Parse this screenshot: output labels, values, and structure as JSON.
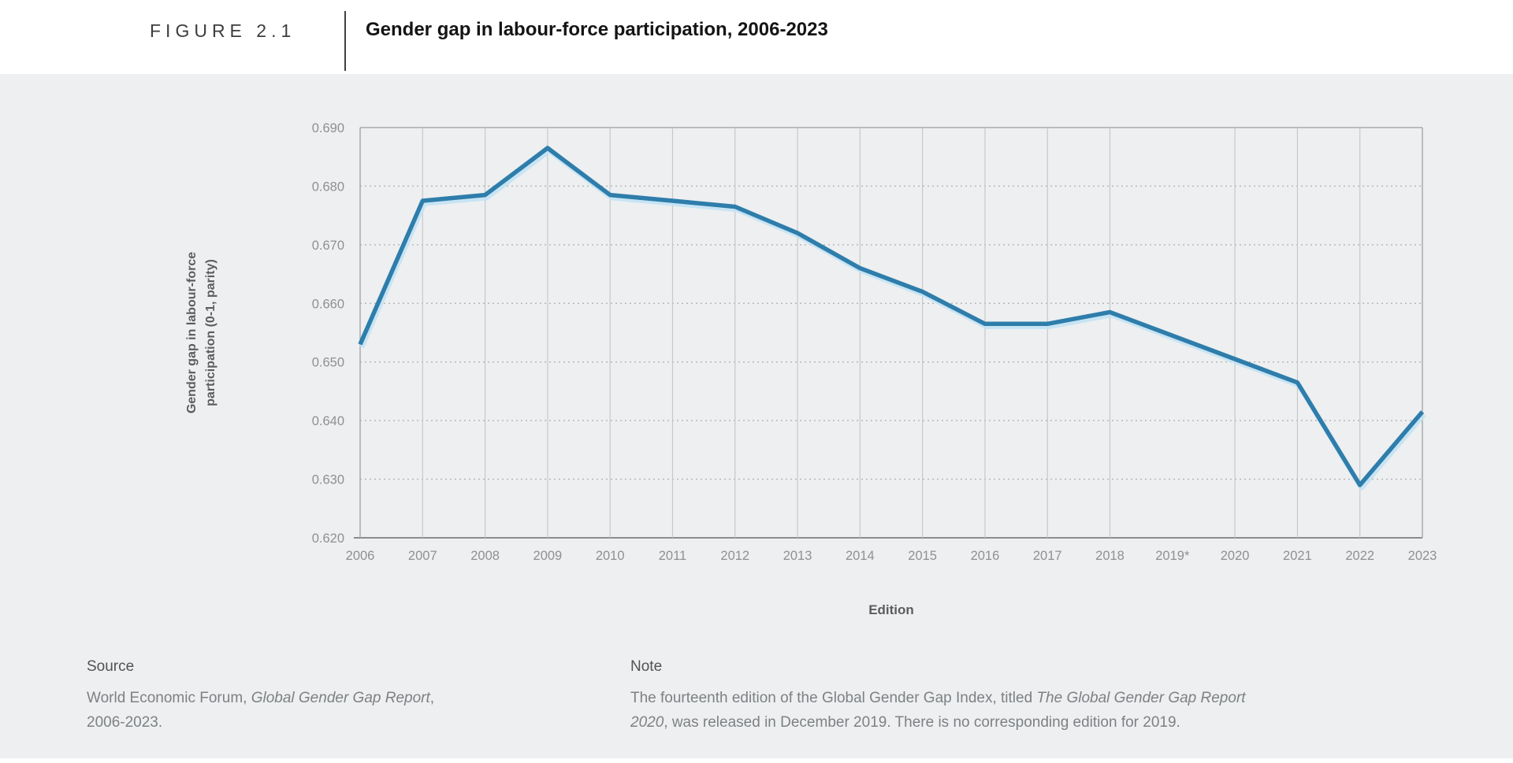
{
  "figure": {
    "label": "FIGURE 2.1",
    "title": "Gender gap in labour-force participation, 2006-2023"
  },
  "chart_data": {
    "type": "line",
    "title": "Gender gap in labour-force participation, 2006-2023",
    "xlabel": "Edition",
    "ylabel": "Gender gap in labour-force participation (0-1, parity)",
    "ylabel_lines": [
      "Gender gap in labour-force",
      "participation (0-1, parity)"
    ],
    "categories": [
      "2006",
      "2007",
      "2008",
      "2009",
      "2010",
      "2011",
      "2012",
      "2013",
      "2014",
      "2015",
      "2016",
      "2017",
      "2018",
      "2019*",
      "2020",
      "2021",
      "2022",
      "2023"
    ],
    "series": [
      {
        "name": "Gender gap in labour-force participation",
        "values": [
          0.653,
          0.6775,
          0.6785,
          0.6865,
          0.6785,
          0.6775,
          0.6765,
          0.672,
          0.666,
          0.662,
          0.6565,
          0.6565,
          0.6585,
          null,
          0.6505,
          0.6465,
          0.629,
          0.6415
        ]
      }
    ],
    "ylim": [
      0.62,
      0.69
    ],
    "ytick_labels": [
      "0.690",
      "0.680",
      "0.670",
      "0.660",
      "0.650",
      "0.640",
      "0.630",
      "0.620"
    ],
    "grid": "vertical solid per edition (none at 2019*), horizontal dotted per 0.010",
    "no_gridline_categories": [
      "2019*"
    ],
    "legend": null,
    "colors": {
      "line": "#2E7DAB",
      "line_halo": "#C2E2F4",
      "panel_background": "#EDEFF0",
      "gridline": "#C6C8CA",
      "plot_border": "#A8AAAC",
      "axis_line": "#898B8D",
      "dotted_gridline": "#B5B7B9",
      "tick_label": "#8E9093",
      "axis_title": "#5A5C5E"
    }
  },
  "footer": {
    "source": {
      "heading": "Source",
      "segments": [
        {
          "text": "World Economic Forum, ",
          "italic": false
        },
        {
          "text": "Global Gender Gap Report",
          "italic": true
        },
        {
          "text": ",\n2006-2023.",
          "italic": false
        }
      ]
    },
    "note": {
      "heading": "Note",
      "segments": [
        {
          "text": "The fourteenth edition of the Global Gender Gap Index, titled ",
          "italic": false
        },
        {
          "text": "The Global Gender Gap Report\n2020",
          "italic": true
        },
        {
          "text": ", was released in December 2019. There is no corresponding edition for 2019.",
          "italic": false
        }
      ]
    }
  }
}
